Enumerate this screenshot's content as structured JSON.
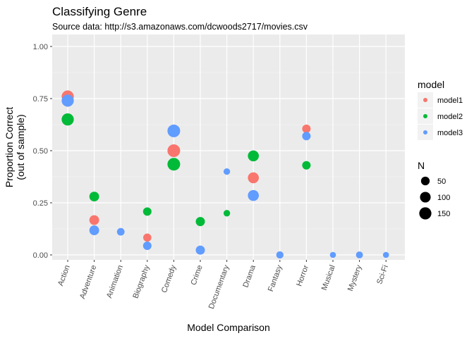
{
  "chart_data": {
    "type": "scatter",
    "title": "Classifying Genre",
    "subtitle": "Source data: http://s3.amazonaws.com/dcwoods2717/movies.csv",
    "xlabel": "Model Comparison",
    "ylabel": "Proportion Correct",
    "ylabel_sub": "(out of sample)",
    "categories": [
      "Action",
      "Adventure",
      "Animation",
      "Biography",
      "Comedy",
      "Crime",
      "Documentary",
      "Drama",
      "Fantasy",
      "Horror",
      "Musical",
      "Mystery",
      "Sci-Fi"
    ],
    "ylim": [
      0,
      1
    ],
    "yticks": [
      0,
      0.25,
      0.5,
      0.75,
      1
    ],
    "ytick_labels": [
      "0.00",
      "0.25",
      "0.50",
      "0.75",
      "1.00"
    ],
    "grid": true,
    "legend_placement": "right",
    "color_legend": {
      "title": "model",
      "entries": [
        {
          "name": "model1",
          "color": "#F8766D"
        },
        {
          "name": "model2",
          "color": "#00BA38"
        },
        {
          "name": "model3",
          "color": "#619CFF"
        }
      ]
    },
    "size_legend": {
      "title": "N",
      "entries": [
        {
          "label": "50",
          "value": 50
        },
        {
          "label": "100",
          "value": 100
        },
        {
          "label": "150",
          "value": 150
        }
      ]
    },
    "series": [
      {
        "name": "model1",
        "color": "#F8766D",
        "points": [
          {
            "x": "Action",
            "y": 0.76,
            "n": 150
          },
          {
            "x": "Adventure",
            "y": 0.167,
            "n": 75
          },
          {
            "x": "Biography",
            "y": 0.083,
            "n": 40
          },
          {
            "x": "Comedy",
            "y": 0.5,
            "n": 170
          },
          {
            "x": "Drama",
            "y": 0.37,
            "n": 110
          },
          {
            "x": "Horror",
            "y": 0.605,
            "n": 45
          }
        ]
      },
      {
        "name": "model2",
        "color": "#00BA38",
        "points": [
          {
            "x": "Action",
            "y": 0.65,
            "n": 150
          },
          {
            "x": "Adventure",
            "y": 0.28,
            "n": 75
          },
          {
            "x": "Biography",
            "y": 0.208,
            "n": 45
          },
          {
            "x": "Comedy",
            "y": 0.435,
            "n": 170
          },
          {
            "x": "Crime",
            "y": 0.16,
            "n": 60
          },
          {
            "x": "Documentary",
            "y": 0.2,
            "n": 15
          },
          {
            "x": "Drama",
            "y": 0.475,
            "n": 110
          },
          {
            "x": "Horror",
            "y": 0.43,
            "n": 45
          }
        ]
      },
      {
        "name": "model3",
        "color": "#619CFF",
        "points": [
          {
            "x": "Action",
            "y": 0.74,
            "n": 150
          },
          {
            "x": "Adventure",
            "y": 0.118,
            "n": 75
          },
          {
            "x": "Animation",
            "y": 0.111,
            "n": 30
          },
          {
            "x": "Biography",
            "y": 0.044,
            "n": 45
          },
          {
            "x": "Comedy",
            "y": 0.595,
            "n": 170
          },
          {
            "x": "Crime",
            "y": 0.023,
            "n": 60
          },
          {
            "x": "Documentary",
            "y": 0.4,
            "n": 15
          },
          {
            "x": "Drama",
            "y": 0.285,
            "n": 110
          },
          {
            "x": "Fantasy",
            "y": 0.0,
            "n": 25
          },
          {
            "x": "Horror",
            "y": 0.57,
            "n": 45
          },
          {
            "x": "Musical",
            "y": 0.0,
            "n": 10
          },
          {
            "x": "Mystery",
            "y": 0.0,
            "n": 20
          },
          {
            "x": "Sci-Fi",
            "y": 0.0,
            "n": 10
          }
        ]
      }
    ]
  }
}
